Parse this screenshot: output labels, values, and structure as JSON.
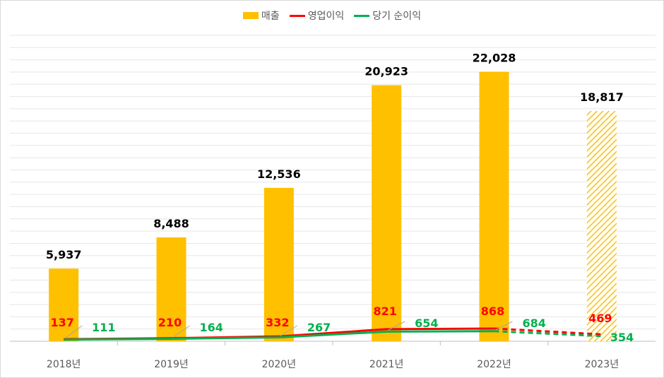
{
  "chart_data": {
    "type": "bar",
    "categories": [
      "2018년",
      "2019년",
      "2020년",
      "2021년",
      "2022년",
      "2023년"
    ],
    "series": [
      {
        "name": "매출",
        "kind": "bar",
        "color": "#ffc000",
        "values": [
          5937,
          8488,
          12536,
          20923,
          22028,
          18817
        ],
        "labels": [
          "5,937",
          "8,488",
          "12,536",
          "20,923",
          "22,028",
          "18,817"
        ]
      },
      {
        "name": "영업이익",
        "kind": "line",
        "color": "#ff0000",
        "values": [
          137,
          210,
          332,
          821,
          868,
          469
        ],
        "labels": [
          "137",
          "210",
          "332",
          "821",
          "868",
          "469"
        ]
      },
      {
        "name": "당기 순이익",
        "kind": "line",
        "color": "#00b050",
        "values": [
          111,
          164,
          267,
          654,
          684,
          354
        ],
        "labels": [
          "111",
          "164",
          "267",
          "654",
          "684",
          "354"
        ]
      }
    ],
    "ylim": [
      0,
      25000
    ],
    "grid": true,
    "legend": "top-center",
    "hatched_last_category": true
  }
}
